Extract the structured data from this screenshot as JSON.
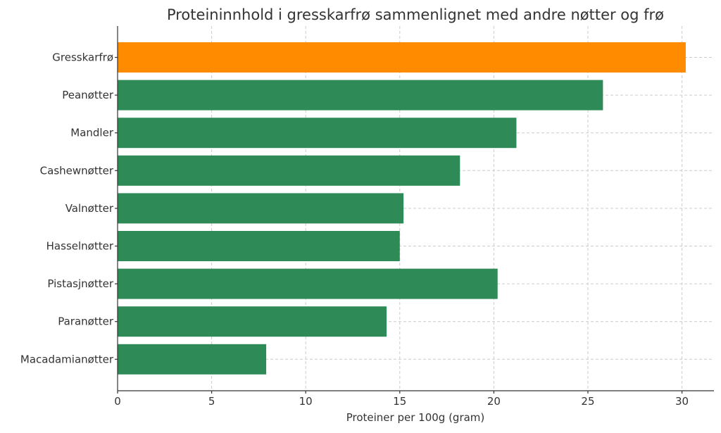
{
  "chart_data": {
    "type": "bar",
    "orientation": "horizontal",
    "title": "Proteininnhold i gresskarfrø sammenlignet med andre nøtter og frø",
    "xlabel": "Proteiner per 100g (gram)",
    "ylabel": "",
    "categories": [
      "Gresskarfrø",
      "Peanøtter",
      "Mandler",
      "Cashewnøtter",
      "Valnøtter",
      "Hasselnøtter",
      "Pistasjnøtter",
      "Paranøtter",
      "Macadamianøtter"
    ],
    "values": [
      30.2,
      25.8,
      21.2,
      18.2,
      15.2,
      15.0,
      20.2,
      14.3,
      7.9
    ],
    "colors": [
      "#ff8c00",
      "#2e8b57",
      "#2e8b57",
      "#2e8b57",
      "#2e8b57",
      "#2e8b57",
      "#2e8b57",
      "#2e8b57",
      "#2e8b57"
    ],
    "xlim": [
      0,
      31.7
    ],
    "xticks": [
      0,
      5,
      10,
      15,
      20,
      25,
      30
    ],
    "grid": true,
    "legend": "none"
  }
}
